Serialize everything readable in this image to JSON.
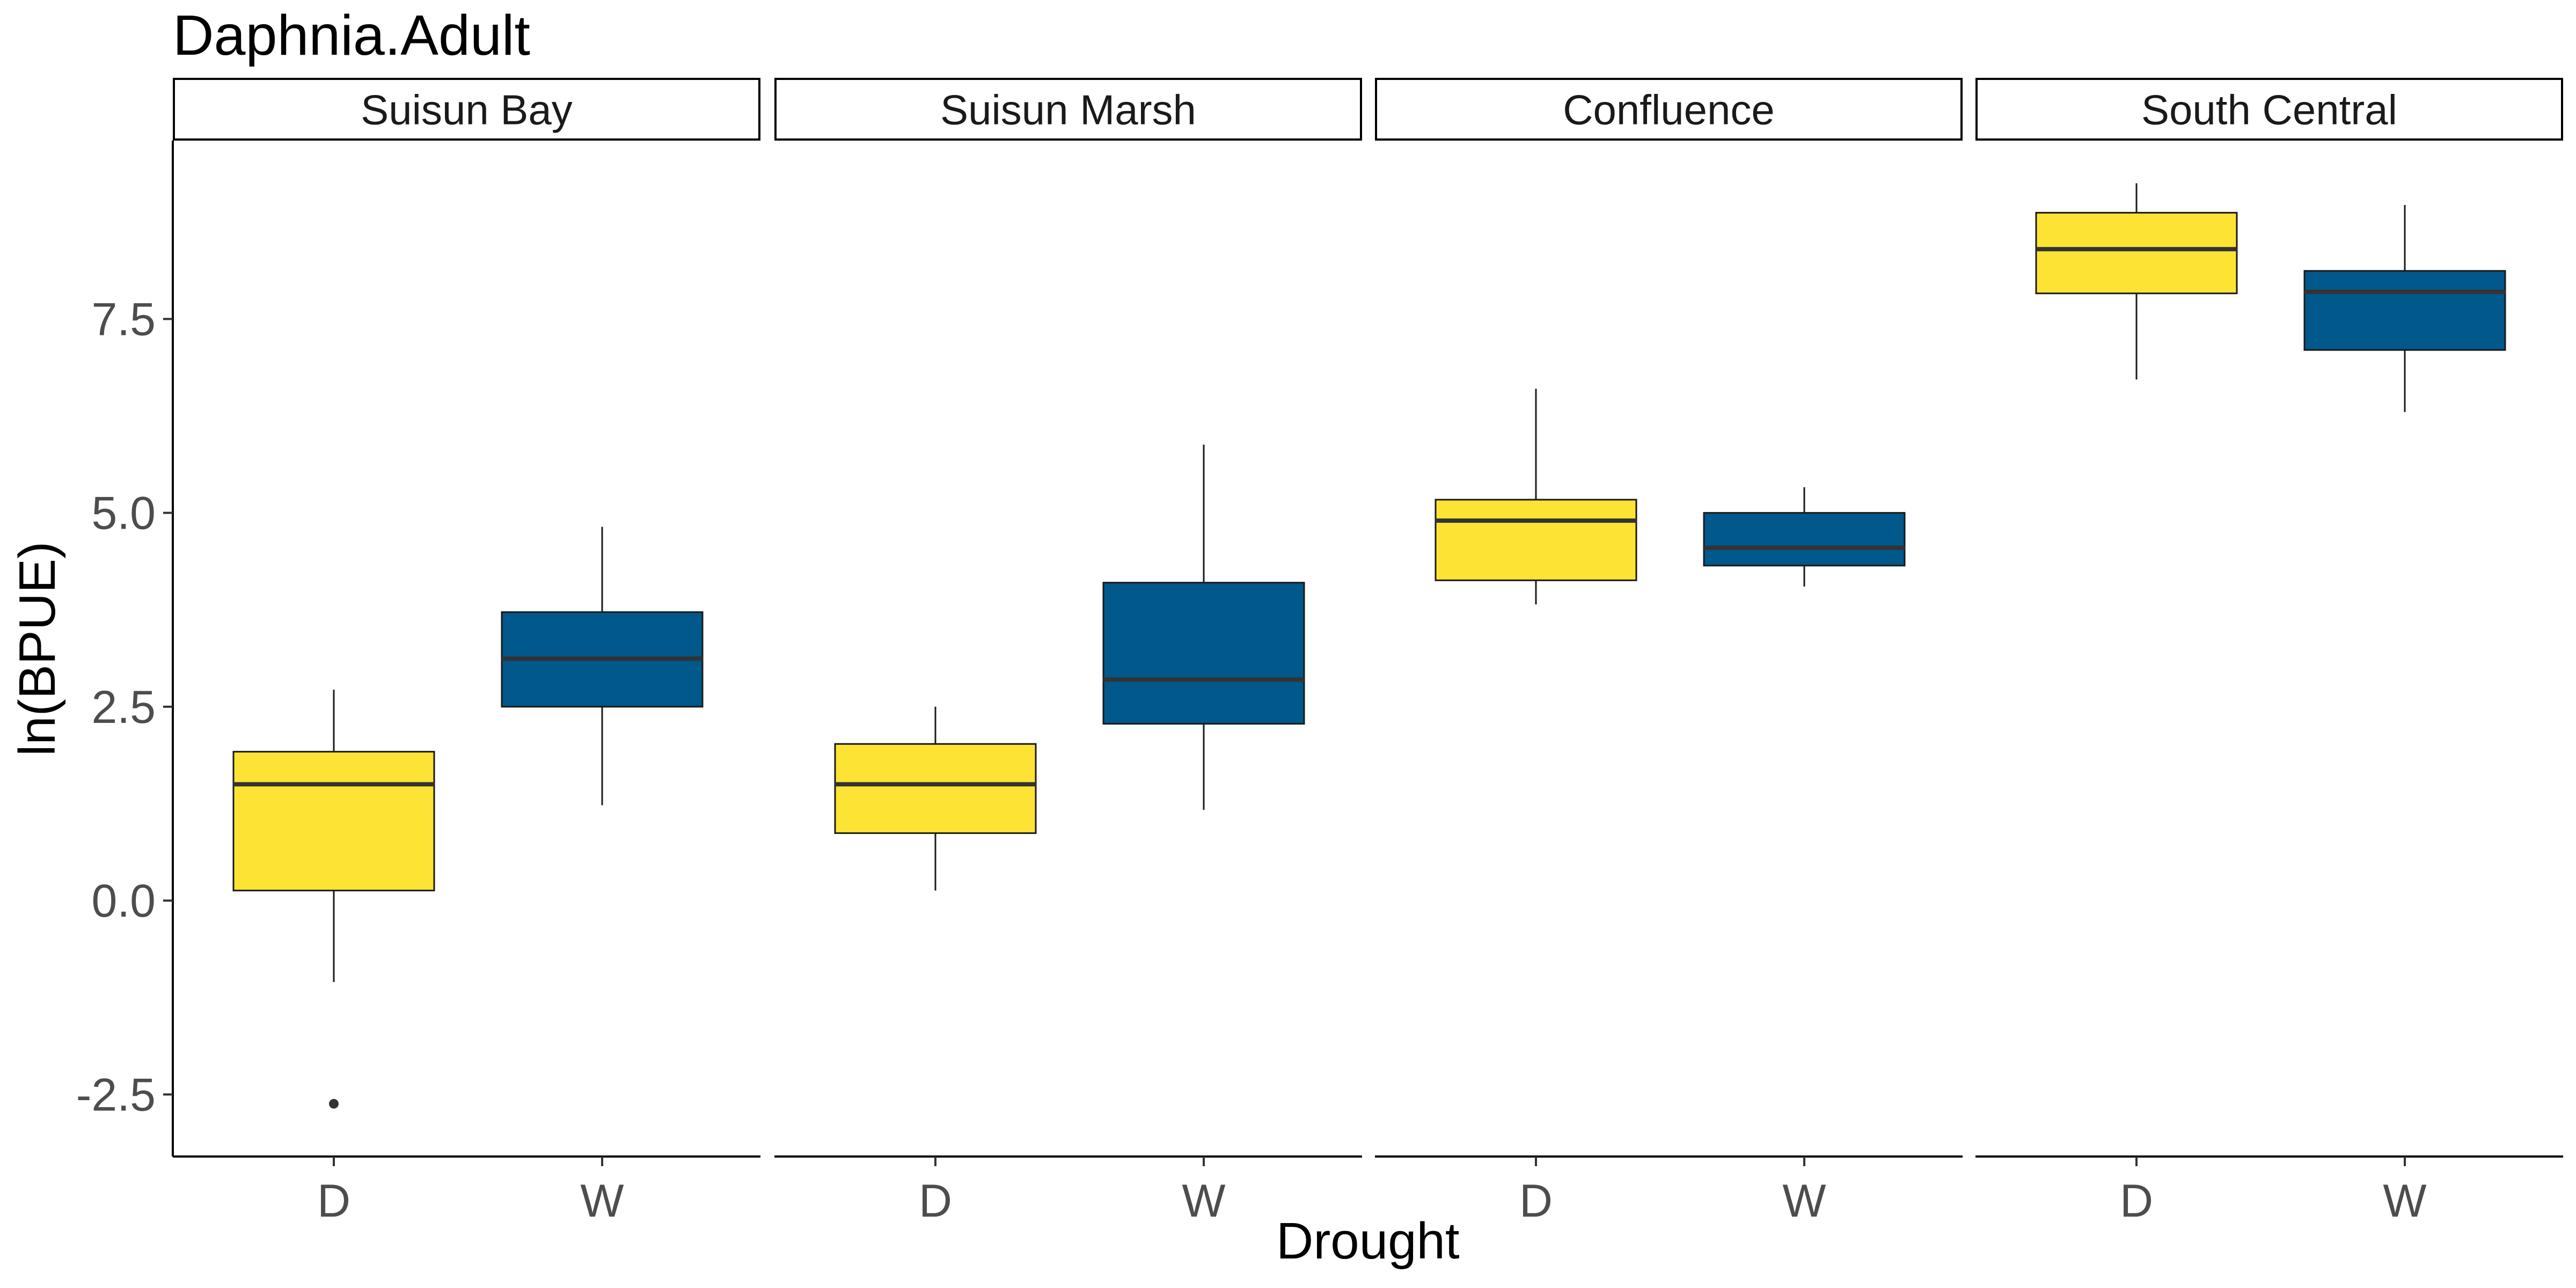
{
  "chart_data": {
    "type": "boxplot",
    "title": "Daphnia.Adult",
    "xlabel": "Drought",
    "ylabel": "ln(BPUE)",
    "ylim": [
      -3.3,
      9.8
    ],
    "yticks": [
      -2.5,
      0.0,
      2.5,
      5.0,
      7.5
    ],
    "ytick_labels": [
      "-2.5",
      "0.0",
      "2.5",
      "5.0",
      "7.5"
    ],
    "categories": [
      "D",
      "W"
    ],
    "grid": false,
    "legend": "none",
    "colors": {
      "D": "#FDE333",
      "W": "#00588B",
      "median": "#333333",
      "outline": "#1a1a1a"
    },
    "facets": [
      {
        "name": "Suisun Bay",
        "boxes": [
          {
            "category": "D",
            "whisker_low": -1.05,
            "q1": 0.13,
            "median": 1.5,
            "q3": 1.92,
            "whisker_high": 2.72,
            "outliers": [
              -2.62
            ]
          },
          {
            "category": "W",
            "whisker_low": 1.23,
            "q1": 2.5,
            "median": 3.12,
            "q3": 3.72,
            "whisker_high": 4.82,
            "outliers": []
          }
        ]
      },
      {
        "name": "Suisun Marsh",
        "boxes": [
          {
            "category": "D",
            "whisker_low": 0.13,
            "q1": 0.87,
            "median": 1.5,
            "q3": 2.02,
            "whisker_high": 2.5,
            "outliers": []
          },
          {
            "category": "W",
            "whisker_low": 1.17,
            "q1": 2.28,
            "median": 2.85,
            "q3": 4.1,
            "whisker_high": 5.88,
            "outliers": []
          }
        ]
      },
      {
        "name": "Confluence",
        "boxes": [
          {
            "category": "D",
            "whisker_low": 3.82,
            "q1": 4.13,
            "median": 4.9,
            "q3": 5.17,
            "whisker_high": 6.6,
            "outliers": []
          },
          {
            "category": "W",
            "whisker_low": 4.05,
            "q1": 4.32,
            "median": 4.55,
            "q3": 5.0,
            "whisker_high": 5.33,
            "outliers": []
          }
        ]
      },
      {
        "name": "South Central",
        "boxes": [
          {
            "category": "D",
            "whisker_low": 6.72,
            "q1": 7.83,
            "median": 8.4,
            "q3": 8.87,
            "whisker_high": 9.25,
            "outliers": []
          },
          {
            "category": "W",
            "whisker_low": 6.3,
            "q1": 7.1,
            "median": 7.85,
            "q3": 8.12,
            "whisker_high": 8.97,
            "outliers": []
          }
        ]
      }
    ]
  }
}
